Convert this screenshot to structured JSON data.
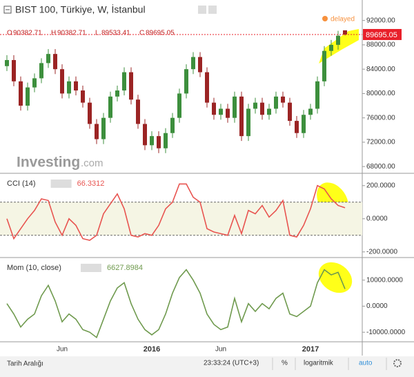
{
  "header": {
    "title": "BIST 100, Türkiye, W, İstanbul",
    "status": "delayed",
    "ohlc_labels": [
      "O",
      "H",
      "L",
      "C"
    ]
  },
  "chart_data": [
    {
      "type": "candlestick",
      "categories": [
        null,
        null,
        null,
        null,
        null,
        null,
        null,
        null,
        "Jun",
        null,
        null,
        null,
        null,
        null,
        null,
        null,
        null,
        null,
        null,
        null,
        null,
        "2016",
        null,
        null,
        null,
        null,
        null,
        null,
        null,
        null,
        null,
        "Jun",
        null,
        null,
        null,
        null,
        null,
        null,
        null,
        null,
        null,
        null,
        null,
        null,
        "2017",
        null,
        null,
        null,
        null,
        null
      ],
      "open": [
        84500,
        85500,
        82000,
        78000,
        81000,
        82500,
        85000,
        86500,
        84000,
        80000,
        82000,
        80500,
        78500,
        75000,
        72500,
        76000,
        79500,
        80500,
        83500,
        79000,
        75000,
        71500,
        73000,
        71000,
        73500,
        76000,
        80000,
        84000,
        86000,
        83500,
        78500,
        76500,
        77500,
        76000,
        79500,
        73000,
        77500,
        78500,
        76500,
        77500,
        79500,
        78500,
        75500,
        73500,
        76500,
        77500,
        82000,
        87000,
        88000,
        90382.71
      ],
      "high": [
        86300,
        86300,
        82800,
        81800,
        83300,
        85800,
        87300,
        87300,
        84800,
        82800,
        82800,
        81300,
        79300,
        75800,
        76800,
        80300,
        81300,
        84300,
        84300,
        79800,
        75800,
        73800,
        73800,
        74300,
        76800,
        80800,
        84800,
        86800,
        86800,
        84300,
        79300,
        78300,
        78300,
        80300,
        80300,
        78300,
        79300,
        79300,
        78300,
        80300,
        80300,
        79300,
        76300,
        77300,
        78300,
        82800,
        87800,
        88800,
        90300,
        90382.71
      ],
      "low": [
        83700,
        81200,
        77200,
        77200,
        80200,
        81700,
        84200,
        83200,
        79200,
        79200,
        79700,
        77700,
        74200,
        71700,
        71700,
        75200,
        78700,
        79700,
        78200,
        74200,
        70700,
        70700,
        70200,
        70200,
        72700,
        75200,
        79200,
        83200,
        82700,
        77700,
        75700,
        75700,
        75200,
        75200,
        72200,
        72200,
        76700,
        75700,
        75700,
        76700,
        77700,
        74700,
        72700,
        72700,
        75700,
        76700,
        81200,
        86200,
        87200,
        89533.41
      ],
      "close": [
        85500,
        82000,
        78000,
        81000,
        82500,
        85000,
        86500,
        84000,
        80000,
        82000,
        80500,
        78500,
        75000,
        72500,
        76000,
        79500,
        80500,
        83500,
        79000,
        75000,
        71500,
        73000,
        71000,
        73500,
        76000,
        80000,
        84000,
        86000,
        83500,
        78500,
        76500,
        77500,
        76000,
        79500,
        73000,
        77500,
        78500,
        76500,
        77500,
        79500,
        78500,
        75500,
        73500,
        76500,
        77500,
        82000,
        87000,
        88000,
        89500,
        89695.05
      ],
      "up_color": "#3d8f3d",
      "down_color": "#9b2424",
      "last_color": "#e8202a",
      "ylim": [
        67000,
        94800
      ],
      "yticks": [
        {
          "value": 68000,
          "label": "68000.00"
        },
        {
          "value": 72000,
          "label": "72000.00"
        },
        {
          "value": 76000,
          "label": "76000.00"
        },
        {
          "value": 80000,
          "label": "80000.00"
        },
        {
          "value": 84000,
          "label": "84000.00"
        },
        {
          "value": 88000,
          "label": "88000.00"
        },
        {
          "value": 92000,
          "label": "92000.00"
        }
      ]
    },
    {
      "type": "line",
      "name": "CCI (14)",
      "color": "#e8534f",
      "values": [
        0,
        -120,
        -60,
        0,
        50,
        120,
        110,
        -20,
        -100,
        0,
        -40,
        -120,
        -130,
        -100,
        30,
        90,
        150,
        60,
        -100,
        -110,
        -90,
        -100,
        -40,
        60,
        100,
        210,
        210,
        130,
        100,
        -60,
        -80,
        -90,
        -100,
        20,
        -90,
        50,
        30,
        80,
        10,
        50,
        110,
        -100,
        -110,
        -40,
        60,
        200,
        180,
        120,
        80,
        66.3312
      ],
      "ylim": [
        -230,
        270
      ],
      "band": [
        -100,
        100
      ],
      "yticks": [
        {
          "value": -200,
          "label": "-200.0000"
        },
        {
          "value": 0,
          "label": "0.0000"
        },
        {
          "value": 200,
          "label": "200.0000"
        }
      ]
    },
    {
      "type": "line",
      "name": "Mom (10, close)",
      "color": "#6f9a4e",
      "values": [
        1000,
        -3000,
        -8000,
        -5000,
        -3000,
        4000,
        8000,
        2000,
        -6000,
        -3000,
        -5000,
        -9000,
        -10000,
        -12000,
        -5000,
        2000,
        7000,
        9000,
        1000,
        -5000,
        -9000,
        -11000,
        -9000,
        -3000,
        5000,
        11000,
        14000,
        10000,
        5000,
        -3000,
        -7000,
        -9000,
        -8000,
        3000,
        -6000,
        1000,
        -2000,
        1000,
        -1000,
        3000,
        5000,
        -3000,
        -4000,
        -2000,
        0,
        9000,
        14000,
        12000,
        13000,
        6627.8984
      ],
      "ylim": [
        -13400,
        18400
      ],
      "yticks": [
        {
          "value": -10000,
          "label": "-10000.0000"
        },
        {
          "value": 0,
          "label": "0.0000"
        },
        {
          "value": 10000,
          "label": "10000.0000"
        }
      ]
    }
  ],
  "watermark": {
    "brand": "Investing",
    "suffix": ".com"
  },
  "toolbar": {
    "range": "Tarih Aralığı",
    "time": "23:33:24 (UTC+3)",
    "percent": "%",
    "log": "logaritmik",
    "auto": "auto"
  }
}
